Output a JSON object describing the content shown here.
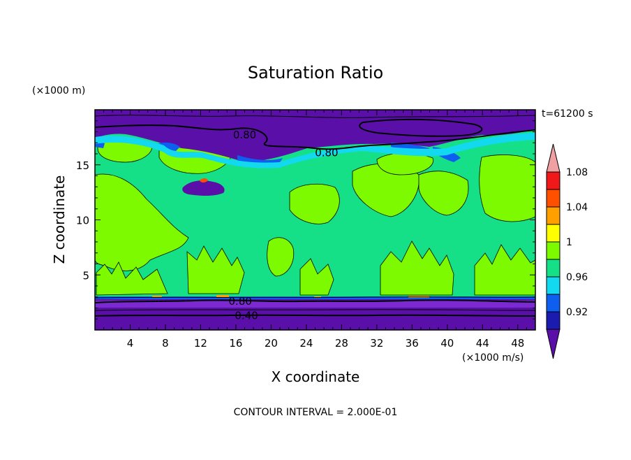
{
  "chart_data": {
    "type": "heatmap",
    "title": "Saturation Ratio",
    "xlabel": "X coordinate",
    "ylabel": "Z coordinate",
    "x_unit": "(×1000 m/s)",
    "y_unit": "(×1000 m)",
    "time_label": "t=61200 s",
    "footer": "CONTOUR INTERVAL = 2.000E-01",
    "xlim": [
      0,
      50
    ],
    "ylim": [
      0,
      20
    ],
    "x_ticks": [
      4,
      8,
      12,
      16,
      20,
      24,
      28,
      32,
      36,
      40,
      44,
      48
    ],
    "y_ticks": [
      5,
      10,
      15
    ],
    "contour_labels": [
      {
        "text": "0.80",
        "x": 17,
        "z": 17.7
      },
      {
        "text": "0.80",
        "x": 26.3,
        "z": 16.1
      },
      {
        "text": "0.80",
        "x": 16.5,
        "z": 2.6
      },
      {
        "text": "0.40",
        "x": 17.2,
        "z": 1.3
      }
    ],
    "colorbar": {
      "levels": [
        0.9,
        0.92,
        0.94,
        0.96,
        0.98,
        1.0,
        1.02,
        1.04,
        1.06,
        1.08,
        1.1
      ],
      "tick_labels": [
        "0.92",
        "0.96",
        "1",
        "1.04",
        "1.08"
      ],
      "tick_values": [
        0.92,
        0.96,
        1.0,
        1.04,
        1.08
      ],
      "colors": [
        "#5a0fa8",
        "#1b1bb0",
        "#0e5ff0",
        "#12d8f0",
        "#16e087",
        "#7dfa00",
        "#ffff00",
        "#ffa000",
        "#ff5000",
        "#f01818",
        "#f0a0a0"
      ]
    },
    "regions": {
      "upper_dry_layer_z": [
        18.5,
        20
      ],
      "moist_layer_z": [
        3,
        17
      ],
      "lower_dry_layer_z": [
        0,
        3
      ],
      "supersaturated_patches_z": [
        3,
        14
      ]
    }
  }
}
